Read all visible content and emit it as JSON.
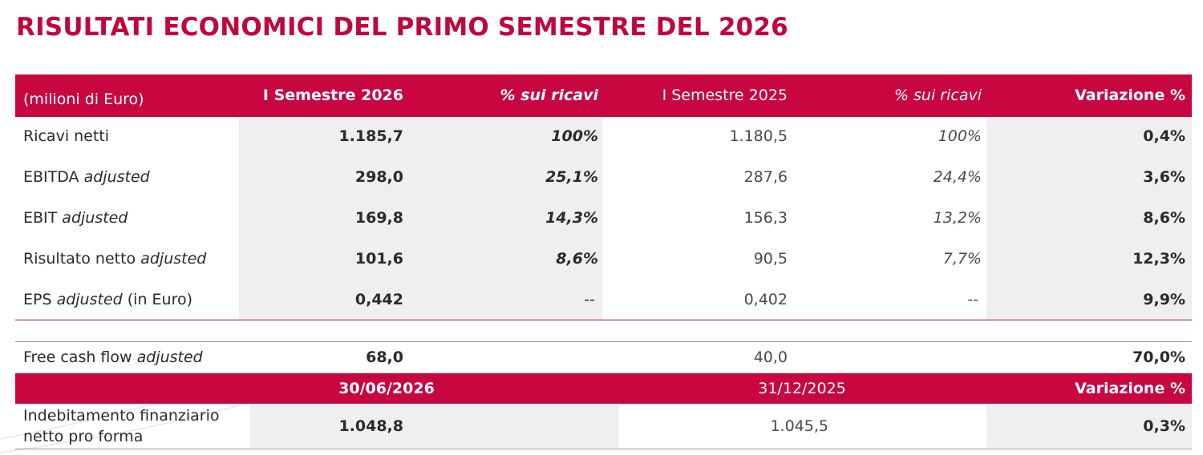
{
  "title": "RISULTATI ECONOMICI DEL PRIMO SEMESTRE DEL 2026",
  "colors": {
    "accent": "#c8063f",
    "title": "#c0063d",
    "shade": "#efefef"
  },
  "table1": {
    "headers": {
      "unit": "(milioni di Euro)",
      "h1": "I Semestre 2026",
      "h2": "% sui ricavi",
      "h3": "I Semestre 2025",
      "h4": "% sui ricavi",
      "h5": "Variazione %"
    },
    "rows": [
      {
        "label": "Ricavi netti",
        "label_italic": "",
        "label_suffix": "",
        "v2026": "1.185,7",
        "pct2026": "100%",
        "v2025": "1.180,5",
        "pct2025": "100%",
        "var": "0,4%"
      },
      {
        "label": "EBITDA",
        "label_italic": "adjusted",
        "label_suffix": "",
        "v2026": "298,0",
        "pct2026": "25,1%",
        "v2025": "287,6",
        "pct2025": "24,4%",
        "var": "3,6%"
      },
      {
        "label": "EBIT",
        "label_italic": "adjusted",
        "label_suffix": "",
        "v2026": "169,8",
        "pct2026": "14,3%",
        "v2025": "156,3",
        "pct2025": "13,2%",
        "var": "8,6%"
      },
      {
        "label": "Risultato netto",
        "label_italic": "adjusted",
        "label_suffix": "",
        "v2026": "101,6",
        "pct2026": "8,6%",
        "v2025": "90,5",
        "pct2025": "7,7%",
        "var": "12,3%"
      },
      {
        "label": "EPS",
        "label_italic": "adjusted",
        "label_suffix": "(in Euro)",
        "v2026": "0,442",
        "pct2026": "--",
        "v2025": "0,402",
        "pct2025": "--",
        "var": "9,9%"
      }
    ]
  },
  "fcf": {
    "label": "Free cash flow",
    "label_italic": "adjusted",
    "v2026": "68,0",
    "v2025": "40,0",
    "var": "70,0%"
  },
  "table2": {
    "headers": {
      "d1": "30/06/2026",
      "d2": "31/12/2025",
      "var": "Variazione %"
    },
    "row": {
      "label_line1": "Indebitamento finanziario",
      "label_line2": "netto pro forma",
      "v1": "1.048,8",
      "v2": "1.045,5",
      "var": "0,3%"
    }
  }
}
